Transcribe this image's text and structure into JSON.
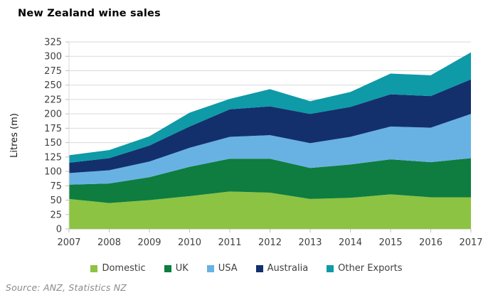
{
  "title": "New Zealand wine sales",
  "source": "Source: ANZ, Statistics NZ",
  "chart_data": {
    "type": "area",
    "stacked": true,
    "title": "New Zealand wine sales",
    "xlabel": "",
    "ylabel": "Litres (m)",
    "x": [
      2007,
      2008,
      2009,
      2010,
      2011,
      2012,
      2013,
      2014,
      2015,
      2016,
      2017
    ],
    "series": [
      {
        "name": "Domestic",
        "color": "#8cc342",
        "values": [
          52,
          45,
          50,
          57,
          65,
          63,
          52,
          54,
          60,
          55,
          55
        ]
      },
      {
        "name": "UK",
        "color": "#0e7d3f",
        "values": [
          25,
          34,
          40,
          51,
          57,
          59,
          54,
          58,
          61,
          61,
          68
        ]
      },
      {
        "name": "USA",
        "color": "#68b2e3",
        "values": [
          20,
          23,
          27,
          33,
          38,
          41,
          43,
          48,
          57,
          60,
          77
        ]
      },
      {
        "name": "Australia",
        "color": "#13306d",
        "values": [
          18,
          21,
          28,
          37,
          48,
          50,
          51,
          52,
          56,
          55,
          60
        ]
      },
      {
        "name": "Other Exports",
        "color": "#0e9aa7",
        "values": [
          13,
          14,
          16,
          24,
          18,
          30,
          22,
          26,
          36,
          36,
          47
        ]
      }
    ],
    "totals": [
      128,
      137,
      161,
      202,
      226,
      243,
      222,
      238,
      270,
      267,
      307
    ],
    "ylim": [
      0,
      325
    ],
    "ytick_step": 25,
    "grid": "horizontal",
    "gridline_color": "#d9d9d9",
    "axis_color": "#bfbfbf",
    "tick_label_color": "#404040",
    "legend_position": "bottom"
  }
}
